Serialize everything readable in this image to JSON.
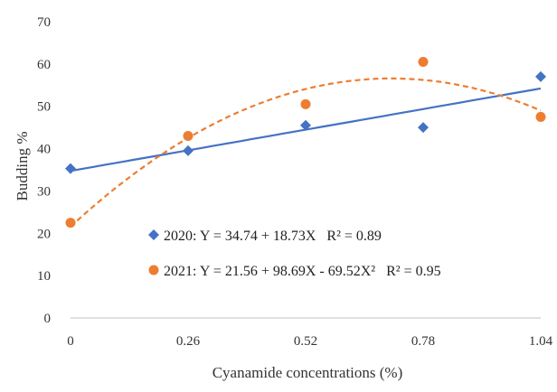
{
  "chart_data": {
    "type": "scatter",
    "title": "",
    "xlabel": "Cyanamide concentrations (%)",
    "ylabel": "Budding %",
    "x": [
      0,
      0.26,
      0.52,
      0.78,
      1.04
    ],
    "xticks": [
      "0",
      "0.26",
      "0.52",
      "0.78",
      "1.04"
    ],
    "ylim": [
      0,
      70
    ],
    "yticks": [
      "0",
      "10",
      "20",
      "30",
      "40",
      "50",
      "60",
      "70"
    ],
    "grid": false,
    "series": [
      {
        "name": "2020",
        "values": [
          35.3,
          39.5,
          45.5,
          45.0,
          57.0
        ],
        "marker": "diamond",
        "color": "#4472C4",
        "trendline": "linear",
        "equation": "2020: Y = 34.74 + 18.73X   R² = 0.89",
        "fit": {
          "a": 34.74,
          "b": 18.73
        }
      },
      {
        "name": "2021",
        "values": [
          22.5,
          43.0,
          50.5,
          60.5,
          47.5
        ],
        "marker": "circle",
        "color": "#ED7D31",
        "trendline": "polynomial-2",
        "equation": "2021: Y = 21.56 + 98.69X - 69.52X²   R² = 0.95",
        "fit": {
          "a": 21.56,
          "b": 98.69,
          "c": -69.52
        }
      }
    ],
    "legend_position": "inside-bottom-left"
  }
}
